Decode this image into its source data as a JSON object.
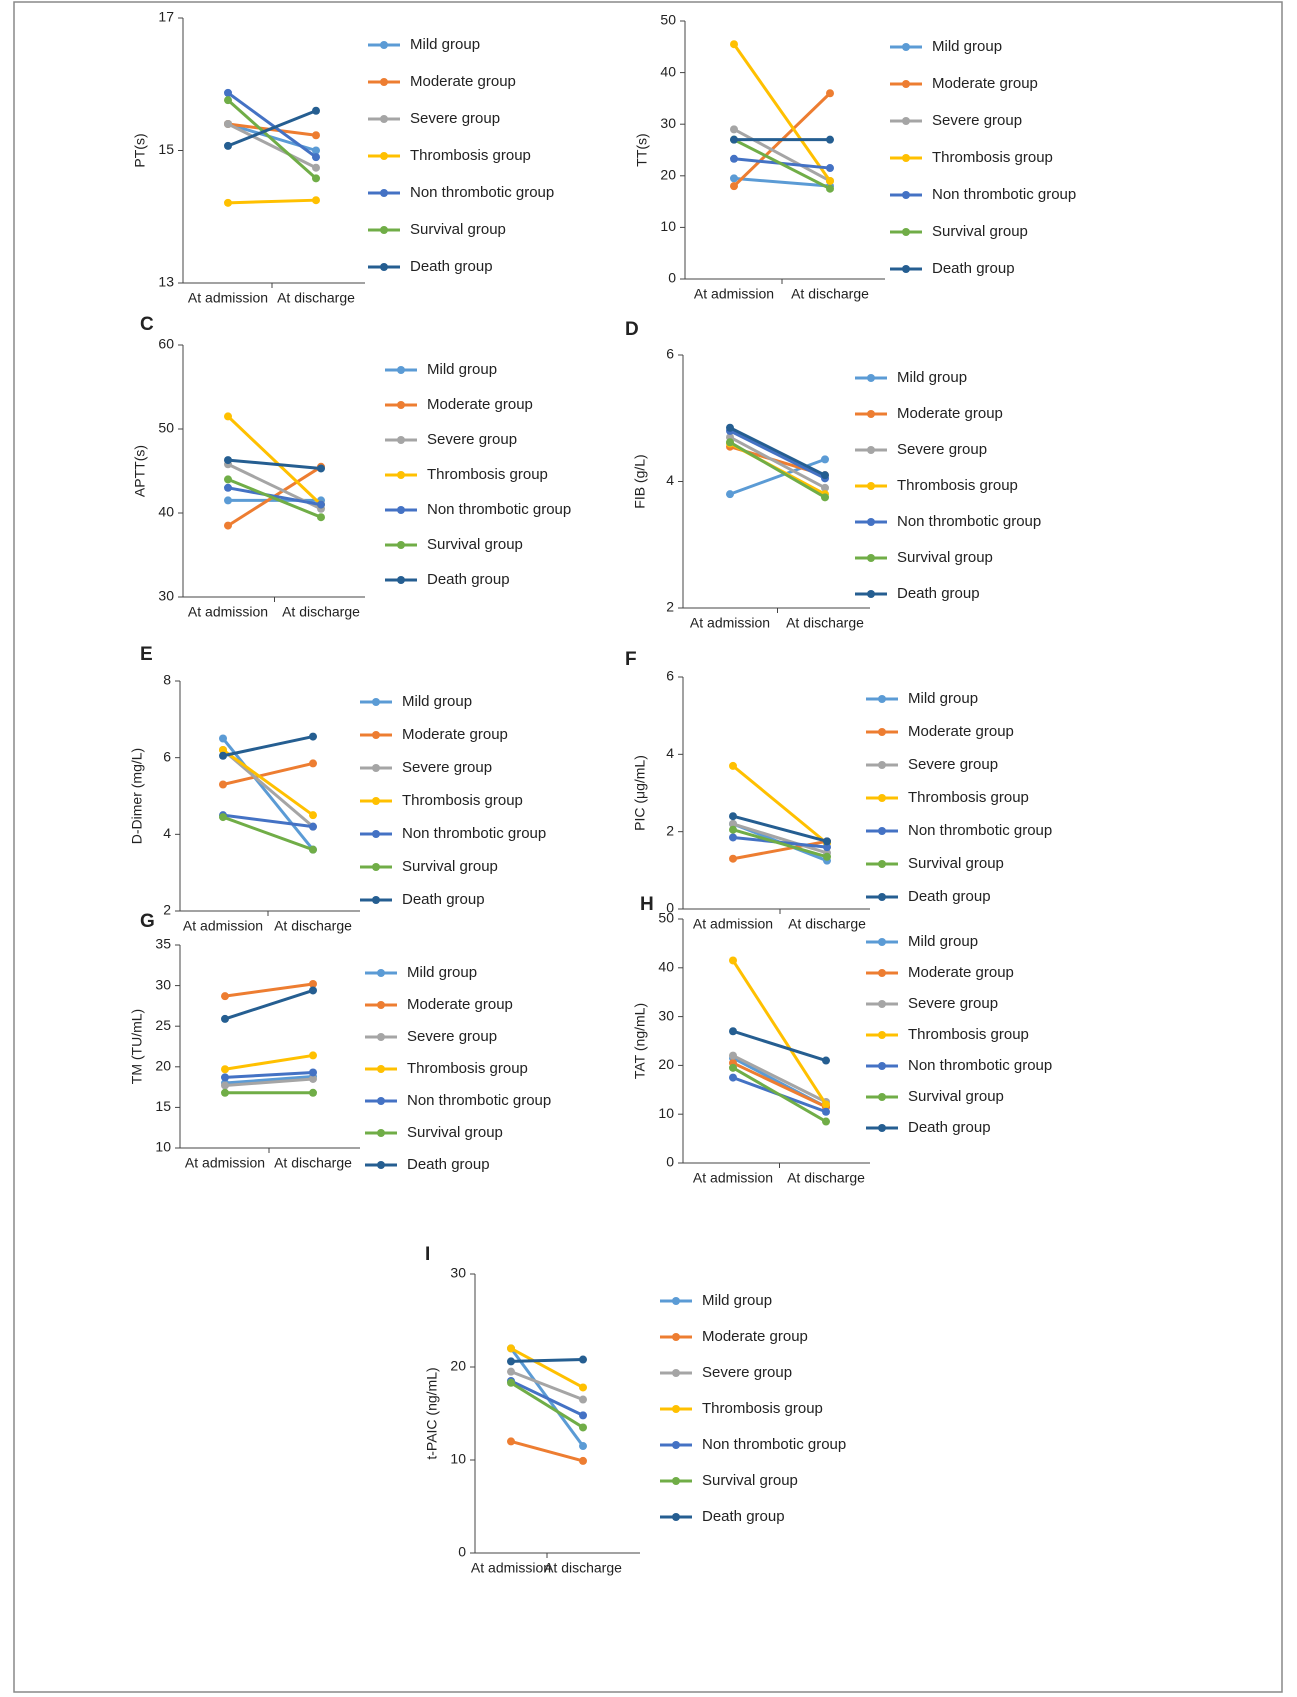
{
  "chart_data": [
    {
      "type": "line",
      "ylabel": "PT(s)",
      "categories": [
        "At admission",
        "At discharge"
      ],
      "ylim": [
        13,
        17
      ],
      "yticks": [
        13,
        15,
        17
      ],
      "series": [
        {
          "name": "Mild group",
          "color": "#5b9bd5",
          "values": [
            15.4,
            15.0
          ]
        },
        {
          "name": "Moderate group",
          "color": "#ed7d31",
          "values": [
            15.4,
            15.23
          ]
        },
        {
          "name": "Severe group",
          "color": "#a5a5a5",
          "values": [
            15.4,
            14.74
          ]
        },
        {
          "name": "Thrombosis group",
          "color": "#ffc000",
          "values": [
            14.21,
            14.25
          ]
        },
        {
          "name": "Non thrombotic group",
          "color": "#4472c4",
          "values": [
            15.87,
            14.9
          ]
        },
        {
          "name": "Survival group",
          "color": "#70ad47",
          "values": [
            15.76,
            14.58
          ]
        },
        {
          "name": "Death group",
          "color": "#255e91",
          "values": [
            15.07,
            15.6
          ]
        }
      ]
    },
    {
      "type": "line",
      "ylabel": "TT(s)",
      "categories": [
        "At admission",
        "At discharge"
      ],
      "ylim": [
        0,
        50
      ],
      "yticks": [
        0,
        10,
        20,
        30,
        40,
        50
      ],
      "series": [
        {
          "name": "Mild group",
          "color": "#5b9bd5",
          "values": [
            19.5,
            18
          ]
        },
        {
          "name": "Moderate group",
          "color": "#ed7d31",
          "values": [
            18,
            36
          ]
        },
        {
          "name": "Severe group",
          "color": "#a5a5a5",
          "values": [
            29,
            19
          ]
        },
        {
          "name": "Thrombosis group",
          "color": "#ffc000",
          "values": [
            45.5,
            19
          ]
        },
        {
          "name": "Non thrombotic group",
          "color": "#4472c4",
          "values": [
            23.3,
            21.5
          ]
        },
        {
          "name": "Survival group",
          "color": "#70ad47",
          "values": [
            27,
            17.5
          ]
        },
        {
          "name": "Death group",
          "color": "#255e91",
          "values": [
            27,
            27
          ]
        }
      ]
    },
    {
      "type": "line",
      "title": "C",
      "ylabel": "APTT(s)",
      "categories": [
        "At admission",
        "At discharge"
      ],
      "ylim": [
        30,
        60
      ],
      "yticks": [
        30,
        40,
        50,
        60
      ],
      "series": [
        {
          "name": "Mild group",
          "color": "#5b9bd5",
          "values": [
            41.5,
            41.5
          ]
        },
        {
          "name": "Moderate group",
          "color": "#ed7d31",
          "values": [
            38.5,
            45.5
          ]
        },
        {
          "name": "Severe group",
          "color": "#a5a5a5",
          "values": [
            45.8,
            40.5
          ]
        },
        {
          "name": "Thrombosis group",
          "color": "#ffc000",
          "values": [
            51.5,
            41
          ]
        },
        {
          "name": "Non thrombotic group",
          "color": "#4472c4",
          "values": [
            43,
            41
          ]
        },
        {
          "name": "Survival group",
          "color": "#70ad47",
          "values": [
            44,
            39.5
          ]
        },
        {
          "name": "Death group",
          "color": "#255e91",
          "values": [
            46.3,
            45.3
          ]
        }
      ]
    },
    {
      "type": "line",
      "title": "D",
      "ylabel": "FIB (g/L)",
      "categories": [
        "At admission",
        "At discharge"
      ],
      "ylim": [
        2,
        6
      ],
      "yticks": [
        2,
        4,
        6
      ],
      "series": [
        {
          "name": "Mild group",
          "color": "#5b9bd5",
          "values": [
            3.8,
            4.35
          ]
        },
        {
          "name": "Moderate group",
          "color": "#ed7d31",
          "values": [
            4.55,
            4.1
          ]
        },
        {
          "name": "Severe group",
          "color": "#a5a5a5",
          "values": [
            4.7,
            3.9
          ]
        },
        {
          "name": "Thrombosis group",
          "color": "#ffc000",
          "values": [
            4.6,
            3.8
          ]
        },
        {
          "name": "Non thrombotic group",
          "color": "#4472c4",
          "values": [
            4.8,
            4.05
          ]
        },
        {
          "name": "Survival group",
          "color": "#70ad47",
          "values": [
            4.62,
            3.75
          ]
        },
        {
          "name": "Death group",
          "color": "#255e91",
          "values": [
            4.85,
            4.1
          ]
        }
      ]
    },
    {
      "type": "line",
      "title": "E",
      "ylabel": "D-Dimer (mg/L)",
      "categories": [
        "At admission",
        "At discharge"
      ],
      "ylim": [
        2,
        8
      ],
      "yticks": [
        2,
        4,
        6,
        8
      ],
      "series": [
        {
          "name": "Mild group",
          "color": "#5b9bd5",
          "values": [
            6.5,
            3.6
          ]
        },
        {
          "name": "Moderate group",
          "color": "#ed7d31",
          "values": [
            5.3,
            5.85
          ]
        },
        {
          "name": "Severe group",
          "color": "#a5a5a5",
          "values": [
            6.2,
            4.2
          ]
        },
        {
          "name": "Thrombosis group",
          "color": "#ffc000",
          "values": [
            6.2,
            4.5
          ]
        },
        {
          "name": "Non thrombotic group",
          "color": "#4472c4",
          "values": [
            4.5,
            4.2
          ]
        },
        {
          "name": "Survival group",
          "color": "#70ad47",
          "values": [
            4.45,
            3.6
          ]
        },
        {
          "name": "Death group",
          "color": "#255e91",
          "values": [
            6.05,
            6.55
          ]
        }
      ]
    },
    {
      "type": "line",
      "title": "F",
      "ylabel": "PIC (μg/mL)",
      "categories": [
        "At admission",
        "At discharge"
      ],
      "ylim": [
        0,
        6
      ],
      "yticks": [
        0,
        2,
        4,
        6
      ],
      "series": [
        {
          "name": "Mild group",
          "color": "#5b9bd5",
          "values": [
            2.2,
            1.25
          ]
        },
        {
          "name": "Moderate group",
          "color": "#ed7d31",
          "values": [
            1.3,
            1.75
          ]
        },
        {
          "name": "Severe group",
          "color": "#a5a5a5",
          "values": [
            2.2,
            1.45
          ]
        },
        {
          "name": "Thrombosis group",
          "color": "#ffc000",
          "values": [
            3.7,
            1.7
          ]
        },
        {
          "name": "Non thrombotic group",
          "color": "#4472c4",
          "values": [
            1.85,
            1.6
          ]
        },
        {
          "name": "Survival group",
          "color": "#70ad47",
          "values": [
            2.05,
            1.35
          ]
        },
        {
          "name": "Death group",
          "color": "#255e91",
          "values": [
            2.4,
            1.75
          ]
        }
      ]
    },
    {
      "type": "line",
      "title": "G",
      "ylabel": "TM (TU/mL)",
      "categories": [
        "At admission",
        "At discharge"
      ],
      "ylim": [
        10,
        35
      ],
      "yticks": [
        10,
        15,
        20,
        25,
        30,
        35
      ],
      "series": [
        {
          "name": "Mild group",
          "color": "#5b9bd5",
          "values": [
            18,
            18.8
          ]
        },
        {
          "name": "Moderate group",
          "color": "#ed7d31",
          "values": [
            28.7,
            30.2
          ]
        },
        {
          "name": "Severe group",
          "color": "#a5a5a5",
          "values": [
            17.7,
            18.5
          ]
        },
        {
          "name": "Thrombosis group",
          "color": "#ffc000",
          "values": [
            19.7,
            21.4
          ]
        },
        {
          "name": "Non thrombotic group",
          "color": "#4472c4",
          "values": [
            18.7,
            19.3
          ]
        },
        {
          "name": "Survival group",
          "color": "#70ad47",
          "values": [
            16.8,
            16.8
          ]
        },
        {
          "name": "Death group",
          "color": "#255e91",
          "values": [
            25.9,
            29.4
          ]
        }
      ]
    },
    {
      "type": "line",
      "title": "H",
      "ylabel": "TAT (ng/mL)",
      "categories": [
        "At admission",
        "At discharge"
      ],
      "ylim": [
        0,
        50
      ],
      "yticks": [
        0,
        10,
        20,
        30,
        40,
        50
      ],
      "series": [
        {
          "name": "Mild group",
          "color": "#5b9bd5",
          "values": [
            21.5,
            11.5
          ]
        },
        {
          "name": "Moderate group",
          "color": "#ed7d31",
          "values": [
            20.5,
            11.5
          ]
        },
        {
          "name": "Severe group",
          "color": "#a5a5a5",
          "values": [
            22,
            12.5
          ]
        },
        {
          "name": "Thrombosis group",
          "color": "#ffc000",
          "values": [
            41.5,
            12
          ]
        },
        {
          "name": "Non thrombotic group",
          "color": "#4472c4",
          "values": [
            17.5,
            10.5
          ]
        },
        {
          "name": "Survival group",
          "color": "#70ad47",
          "values": [
            19.5,
            8.5
          ]
        },
        {
          "name": "Death group",
          "color": "#255e91",
          "values": [
            27,
            21
          ]
        }
      ]
    },
    {
      "type": "line",
      "title": "I",
      "ylabel": "t-PAIC (ng/mL)",
      "categories": [
        "At admission",
        "At discharge"
      ],
      "ylim": [
        0,
        30
      ],
      "yticks": [
        0,
        10,
        20,
        30
      ],
      "series": [
        {
          "name": "Mild group",
          "color": "#5b9bd5",
          "values": [
            22,
            11.5
          ]
        },
        {
          "name": "Moderate group",
          "color": "#ed7d31",
          "values": [
            12,
            9.9
          ]
        },
        {
          "name": "Severe group",
          "color": "#a5a5a5",
          "values": [
            19.5,
            16.5
          ]
        },
        {
          "name": "Thrombosis group",
          "color": "#ffc000",
          "values": [
            22,
            17.8
          ]
        },
        {
          "name": "Non thrombotic group",
          "color": "#4472c4",
          "values": [
            18.5,
            14.8
          ]
        },
        {
          "name": "Survival group",
          "color": "#70ad47",
          "values": [
            18.3,
            13.5
          ]
        },
        {
          "name": "Death group",
          "color": "#255e91",
          "values": [
            20.6,
            20.8
          ]
        }
      ]
    }
  ]
}
